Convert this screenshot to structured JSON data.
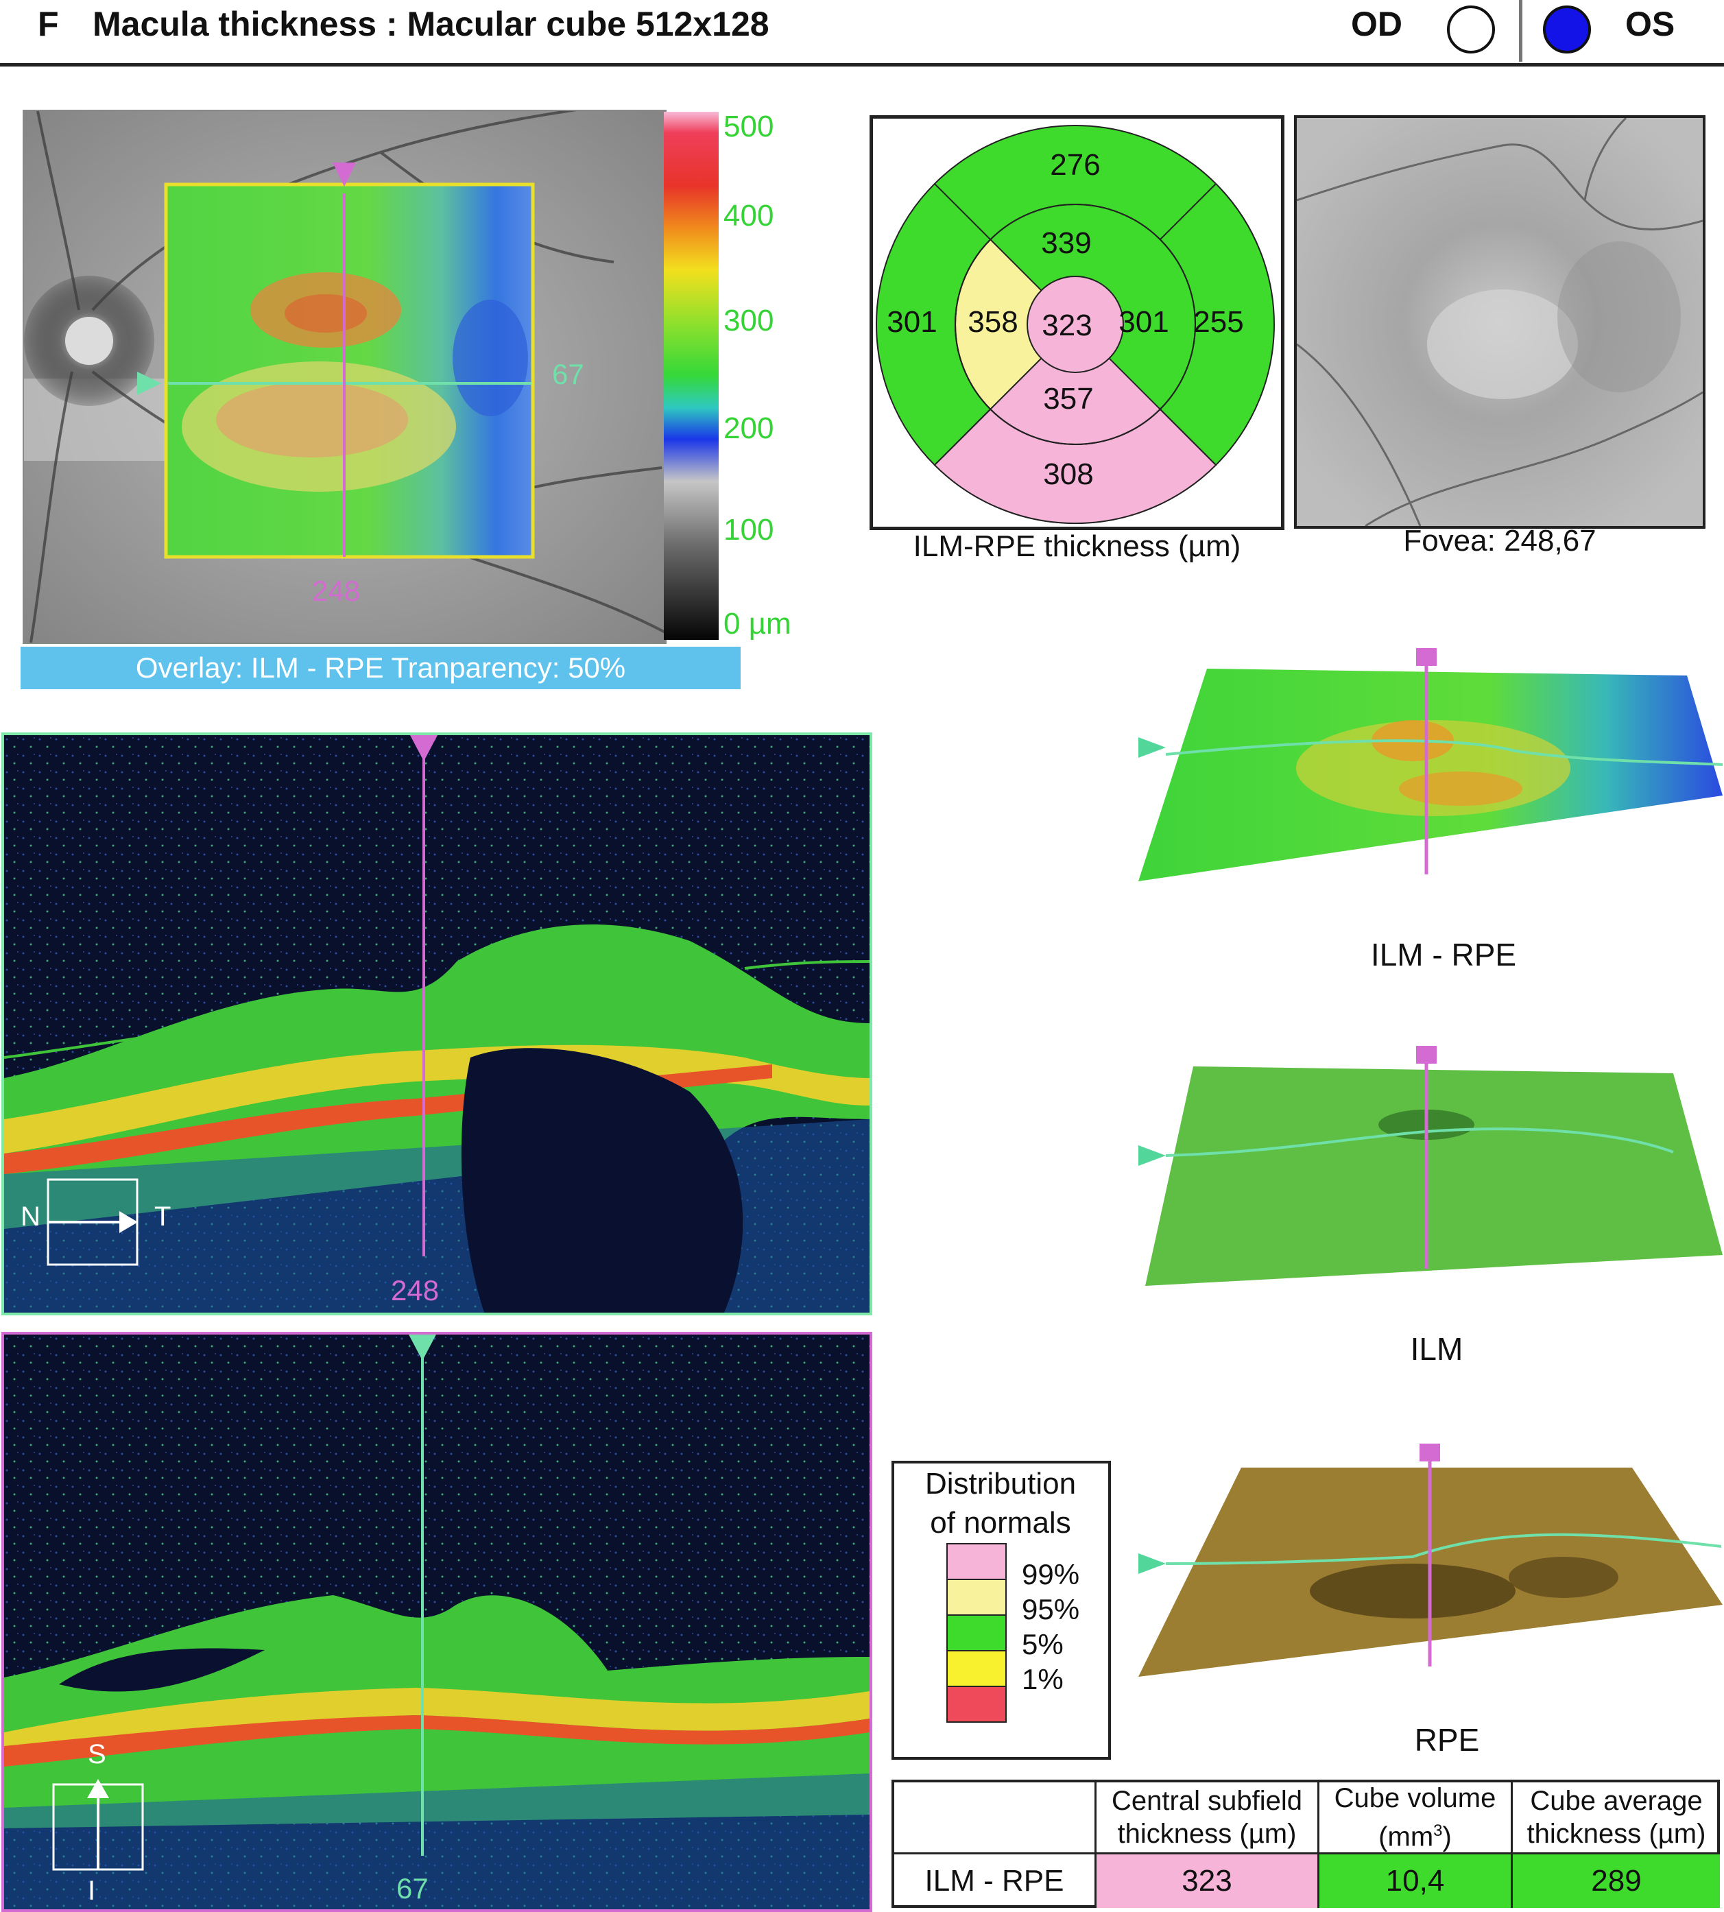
{
  "header": {
    "panel_letter": "F",
    "title": "Macula thickness : Macular cube 512x128",
    "od_label": "OD",
    "os_label": "OS"
  },
  "fundus": {
    "vertical_marker": "248",
    "horizontal_marker": "67",
    "overlay_label": "Overlay: ILM - RPE Tranparency: 50%"
  },
  "colorbar": {
    "ticks": [
      "500",
      "400",
      "300",
      "200",
      "100",
      "0 µm"
    ]
  },
  "sector_map": {
    "caption": "ILM-RPE thickness (µm)",
    "center": "323",
    "inner_superior": "339",
    "inner_nasal": "358",
    "inner_temporal": "301",
    "inner_inferior": "357",
    "outer_superior": "276",
    "outer_nasal": "301",
    "outer_temporal": "255",
    "outer_inferior": "308",
    "colors": {
      "green": "#3fdb2c",
      "pink": "#f6b4d8",
      "yellow": "#f7f29b"
    }
  },
  "fovea": {
    "caption": "Fovea: 248,67"
  },
  "bscan_horizontal": {
    "marker": "248",
    "dir_from": "N",
    "dir_to": "T"
  },
  "bscan_vertical": {
    "marker": "67",
    "dir_top": "S",
    "dir_bottom": "I"
  },
  "surfaces": {
    "ilm_rpe": "ILM - RPE",
    "ilm": "ILM",
    "rpe": "RPE"
  },
  "legend": {
    "title_line1": "Distribution",
    "title_line2": "of normals",
    "items": [
      {
        "label": "99%",
        "color": "#f6b4d8"
      },
      {
        "label": "95%",
        "color": "#f7f29b"
      },
      {
        "label": "5%",
        "color": "#3fdb2c"
      },
      {
        "label": "1%",
        "color": "#f7f22d"
      },
      {
        "label": "",
        "color": "#ef4a5a"
      }
    ]
  },
  "table": {
    "headers": {
      "csf_line1": "Central subfield",
      "csf_line2": "thickness (µm)",
      "vol_line1": "Cube volume",
      "vol_line2": "(mm",
      "vol_sup": "3",
      "vol_close": ")",
      "avg_line1": "Cube average",
      "avg_line2": "thickness (µm)"
    },
    "row_label": "ILM - RPE",
    "csf_value": "323",
    "volume_value": "10,4",
    "average_value": "289",
    "colors": {
      "csf": "#f6b4d8",
      "volume": "#3fdb2c",
      "average": "#3fdb2c"
    }
  }
}
